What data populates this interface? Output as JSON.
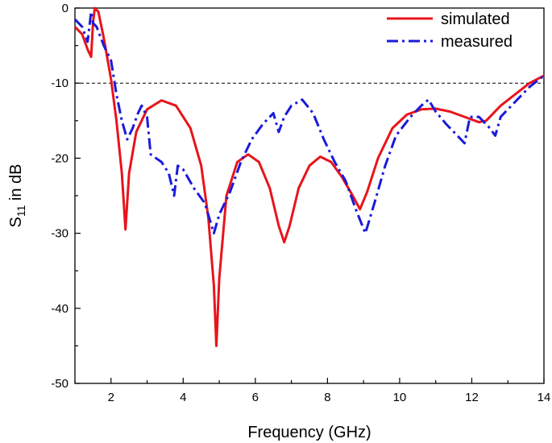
{
  "chart_data": {
    "type": "line",
    "title": "",
    "xlabel": "Frequency (GHz)",
    "ylabel": {
      "main": "S",
      "sub": "11",
      "rest": " in dB"
    },
    "xlim": [
      1,
      14
    ],
    "ylim": [
      -50,
      0
    ],
    "xticks": [
      2,
      4,
      6,
      8,
      10,
      12,
      14
    ],
    "yticks": [
      0,
      -10,
      -20,
      -30,
      -40,
      -50
    ],
    "xtick_labels": [
      "2",
      "4",
      "6",
      "8",
      "10",
      "12",
      "14"
    ],
    "ytick_labels": [
      "0",
      "-10",
      "-20",
      "-30",
      "-40",
      "-50"
    ],
    "reference_line": {
      "y": -10,
      "style": "dashed",
      "color": "#000000"
    },
    "legend_position": "top-right",
    "grid": false,
    "series": [
      {
        "name": "simulated",
        "color": "#e8141b",
        "style": "solid",
        "points": [
          [
            1.0,
            -2.5
          ],
          [
            1.2,
            -3.5
          ],
          [
            1.35,
            -5.5
          ],
          [
            1.45,
            -6.5
          ],
          [
            1.5,
            -2.0
          ],
          [
            1.55,
            0.0
          ],
          [
            1.65,
            -0.5
          ],
          [
            1.8,
            -4.0
          ],
          [
            2.0,
            -9.5
          ],
          [
            2.15,
            -15.0
          ],
          [
            2.3,
            -22.0
          ],
          [
            2.4,
            -29.5
          ],
          [
            2.5,
            -22.0
          ],
          [
            2.7,
            -16.5
          ],
          [
            3.0,
            -13.5
          ],
          [
            3.4,
            -12.3
          ],
          [
            3.8,
            -13.0
          ],
          [
            4.2,
            -16.0
          ],
          [
            4.5,
            -21.0
          ],
          [
            4.7,
            -28.0
          ],
          [
            4.85,
            -37.0
          ],
          [
            4.92,
            -45.0
          ],
          [
            5.0,
            -36.0
          ],
          [
            5.2,
            -25.0
          ],
          [
            5.5,
            -20.5
          ],
          [
            5.8,
            -19.5
          ],
          [
            6.1,
            -20.5
          ],
          [
            6.4,
            -24.0
          ],
          [
            6.65,
            -29.0
          ],
          [
            6.8,
            -31.2
          ],
          [
            6.95,
            -29.0
          ],
          [
            7.2,
            -24.0
          ],
          [
            7.5,
            -21.0
          ],
          [
            7.8,
            -19.8
          ],
          [
            8.1,
            -20.5
          ],
          [
            8.4,
            -22.5
          ],
          [
            8.7,
            -25.0
          ],
          [
            8.9,
            -26.8
          ],
          [
            9.1,
            -24.5
          ],
          [
            9.4,
            -20.0
          ],
          [
            9.8,
            -16.0
          ],
          [
            10.2,
            -14.2
          ],
          [
            10.6,
            -13.5
          ],
          [
            11.0,
            -13.4
          ],
          [
            11.4,
            -13.8
          ],
          [
            11.8,
            -14.5
          ],
          [
            12.2,
            -15.2
          ],
          [
            12.4,
            -15.0
          ],
          [
            12.8,
            -13.0
          ],
          [
            13.2,
            -11.5
          ],
          [
            13.6,
            -10.0
          ],
          [
            14.0,
            -9.0
          ]
        ]
      },
      {
        "name": "measured",
        "color": "#1a1adb",
        "style": "dashdot",
        "points": [
          [
            1.0,
            -1.5
          ],
          [
            1.2,
            -2.5
          ],
          [
            1.35,
            -4.5
          ],
          [
            1.4,
            -2.5
          ],
          [
            1.45,
            -0.5
          ],
          [
            1.5,
            -2.0
          ],
          [
            1.6,
            -2.5
          ],
          [
            1.8,
            -5.0
          ],
          [
            2.0,
            -7.0
          ],
          [
            2.15,
            -11.5
          ],
          [
            2.3,
            -15.0
          ],
          [
            2.45,
            -17.5
          ],
          [
            2.6,
            -16.0
          ],
          [
            2.75,
            -14.0
          ],
          [
            2.85,
            -13.0
          ],
          [
            3.0,
            -14.5
          ],
          [
            3.1,
            -19.5
          ],
          [
            3.4,
            -20.5
          ],
          [
            3.6,
            -22.0
          ],
          [
            3.75,
            -25.0
          ],
          [
            3.85,
            -21.0
          ],
          [
            4.0,
            -21.5
          ],
          [
            4.3,
            -24.0
          ],
          [
            4.6,
            -26.0
          ],
          [
            4.85,
            -30.0
          ],
          [
            5.0,
            -27.5
          ],
          [
            5.3,
            -24.5
          ],
          [
            5.6,
            -20.5
          ],
          [
            5.9,
            -17.5
          ],
          [
            6.2,
            -15.5
          ],
          [
            6.5,
            -14.0
          ],
          [
            6.65,
            -16.5
          ],
          [
            6.8,
            -14.5
          ],
          [
            7.0,
            -13.0
          ],
          [
            7.3,
            -12.2
          ],
          [
            7.6,
            -14.0
          ],
          [
            7.9,
            -17.5
          ],
          [
            8.2,
            -20.5
          ],
          [
            8.5,
            -23.0
          ],
          [
            8.8,
            -27.0
          ],
          [
            9.05,
            -30.0
          ],
          [
            9.3,
            -26.0
          ],
          [
            9.6,
            -21.0
          ],
          [
            9.9,
            -17.0
          ],
          [
            10.3,
            -14.5
          ],
          [
            10.6,
            -13.0
          ],
          [
            10.8,
            -12.2
          ],
          [
            11.0,
            -13.8
          ],
          [
            11.3,
            -15.5
          ],
          [
            11.6,
            -17.0
          ],
          [
            11.8,
            -18.0
          ],
          [
            11.95,
            -14.5
          ],
          [
            12.2,
            -14.5
          ],
          [
            12.5,
            -16.0
          ],
          [
            12.65,
            -17.0
          ],
          [
            12.8,
            -14.5
          ],
          [
            13.2,
            -12.5
          ],
          [
            13.6,
            -10.5
          ],
          [
            14.0,
            -9.0
          ]
        ]
      }
    ]
  }
}
